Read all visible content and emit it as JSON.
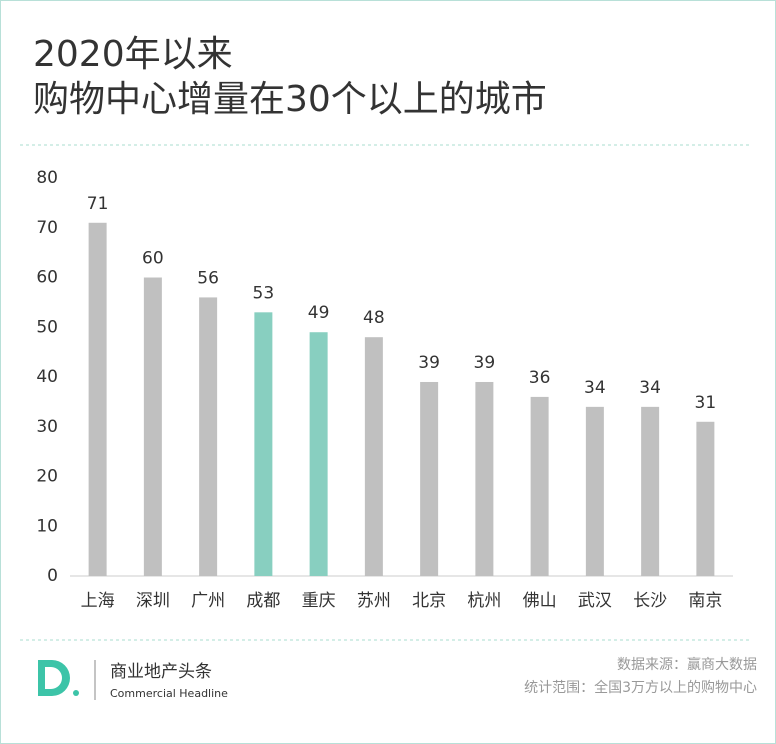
{
  "chart_data": {
    "type": "bar",
    "title": [
      "2020年以来",
      "购物中心增量在30个以上的城市"
    ],
    "categories": [
      "上海",
      "深圳",
      "广州",
      "成都",
      "重庆",
      "苏州",
      "北京",
      "杭州",
      "佛山",
      "武汉",
      "长沙",
      "南京"
    ],
    "values": [
      71,
      60,
      56,
      53,
      49,
      48,
      39,
      39,
      36,
      34,
      34,
      31
    ],
    "colors": [
      "#c0c0c0",
      "#c0c0c0",
      "#c0c0c0",
      "#88cfc0",
      "#88cfc0",
      "#c0c0c0",
      "#c0c0c0",
      "#c0c0c0",
      "#c0c0c0",
      "#c0c0c0",
      "#c0c0c0",
      "#c0c0c0"
    ],
    "ylim": [
      0,
      80
    ],
    "yticks": [
      0,
      10,
      20,
      30,
      40,
      50,
      60,
      70,
      80
    ],
    "grid": false
  },
  "footer": {
    "brand": "商业地产头条",
    "brand_en": "Commercial Headline",
    "source": "数据来源：赢商大数据",
    "note": "统计范围：全国3万方以上的购物中心"
  }
}
